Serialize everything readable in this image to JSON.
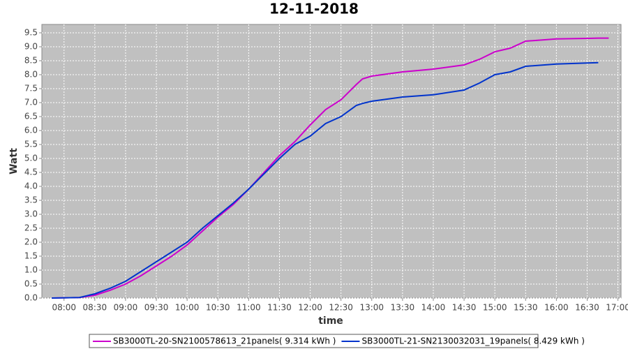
{
  "chart_data": {
    "type": "line",
    "title": "12-11-2018",
    "x_label": "time",
    "y_label": "Watt",
    "x": [
      7.8,
      8.25,
      8.5,
      8.75,
      9,
      9.25,
      9.5,
      9.75,
      10,
      10.25,
      10.5,
      10.75,
      11,
      11.25,
      11.5,
      11.75,
      12,
      12.25,
      12.5,
      12.75,
      12.85,
      13,
      13.5,
      14,
      14.5,
      14.75,
      15,
      15.25,
      15.5,
      16,
      16.5,
      16.68,
      16.85
    ],
    "series": [
      {
        "name": "SB3000TL-20-SN2100578613_21panels( 9.314 kWh )",
        "color": "#cc00cc",
        "values": [
          0,
          0.02,
          0.1,
          0.28,
          0.5,
          0.8,
          1.15,
          1.5,
          1.9,
          2.4,
          2.9,
          3.35,
          3.9,
          4.5,
          5.1,
          5.6,
          6.2,
          6.75,
          7.1,
          7.65,
          7.85,
          7.95,
          8.1,
          8.2,
          8.35,
          8.55,
          8.82,
          8.95,
          9.2,
          9.28,
          9.3,
          9.31,
          9.31
        ]
      },
      {
        "name": "SB3000TL-21-SN2130032031_19panels( 8.429 kWh )",
        "color": "#0033cc",
        "values": [
          0,
          0.02,
          0.15,
          0.35,
          0.6,
          0.95,
          1.3,
          1.65,
          2.0,
          2.5,
          2.95,
          3.4,
          3.9,
          4.45,
          5.0,
          5.5,
          5.8,
          6.25,
          6.5,
          6.9,
          6.97,
          7.05,
          7.2,
          7.28,
          7.45,
          7.7,
          8.0,
          8.1,
          8.3,
          8.38,
          8.42,
          8.43,
          null
        ]
      }
    ],
    "xlim": [
      7.64,
      17.05
    ],
    "xticks": [
      {
        "value": 8,
        "label": "08:00"
      },
      {
        "value": 8.5,
        "label": "08:30"
      },
      {
        "value": 9,
        "label": "09:00"
      },
      {
        "value": 9.5,
        "label": "09:30"
      },
      {
        "value": 10,
        "label": "10:00"
      },
      {
        "value": 10.5,
        "label": "10:30"
      },
      {
        "value": 11,
        "label": "11:00"
      },
      {
        "value": 11.5,
        "label": "11:30"
      },
      {
        "value": 12,
        "label": "12:00"
      },
      {
        "value": 12.5,
        "label": "12:30"
      },
      {
        "value": 13,
        "label": "13:00"
      },
      {
        "value": 13.5,
        "label": "13:30"
      },
      {
        "value": 14,
        "label": "14:00"
      },
      {
        "value": 14.5,
        "label": "14:30"
      },
      {
        "value": 15,
        "label": "15:00"
      },
      {
        "value": 15.5,
        "label": "15:30"
      },
      {
        "value": 16,
        "label": "16:00"
      },
      {
        "value": 16.5,
        "label": "16:30"
      },
      {
        "value": 17,
        "label": "17:00"
      }
    ],
    "ylim": [
      0,
      9.8
    ],
    "yticks": [
      {
        "value": 0,
        "label": "0.0"
      },
      0.5,
      {
        "value": 1,
        "label": "1.0"
      },
      1.5,
      {
        "value": 2,
        "label": "2.0"
      },
      2.5,
      {
        "value": 3,
        "label": "3.0"
      },
      3.5,
      {
        "value": 4,
        "label": "4.0"
      },
      4.5,
      {
        "value": 5,
        "label": "5.0"
      },
      5.5,
      {
        "value": 6,
        "label": "6.0"
      },
      6.5,
      {
        "value": 7,
        "label": "7.0"
      },
      7.5,
      {
        "value": 8,
        "label": "8.0"
      },
      8.5,
      {
        "value": 9,
        "label": "9.0"
      },
      9.5
    ],
    "grid": true
  }
}
